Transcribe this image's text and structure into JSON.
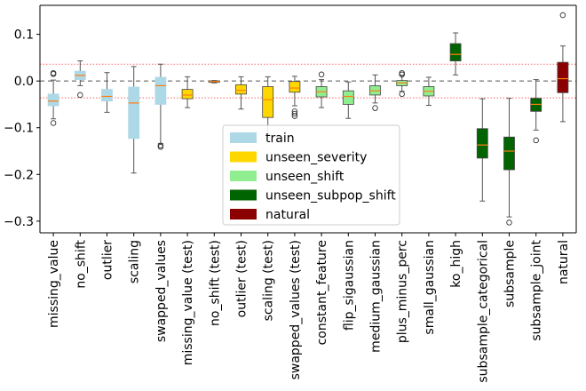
{
  "chart_data": {
    "type": "box",
    "categories": [
      "missing_value",
      "no_shift",
      "outlier",
      "scaling",
      "swapped_values",
      "missing_value (test)",
      "no_shift (test)",
      "outlier (test)",
      "scaling (test)",
      "swapped_values (test)",
      "constant_feature",
      "flip_sigaussian",
      "medium_gaussian",
      "plus_minus_perc",
      "small_gaussian",
      "ko_high",
      "subsample_categorical",
      "subsample",
      "subsample_joint",
      "natural"
    ],
    "groups": [
      "train",
      "train",
      "train",
      "train",
      "train",
      "unseen_severity",
      "unseen_severity",
      "unseen_severity",
      "unseen_severity",
      "unseen_severity",
      "unseen_shift",
      "unseen_shift",
      "unseen_shift",
      "unseen_shift",
      "unseen_shift",
      "unseen_subpop_shift",
      "unseen_subpop_shift",
      "unseen_subpop_shift",
      "unseen_subpop_shift",
      "natural"
    ],
    "boxes": [
      {
        "whislo": -0.081,
        "q1": -0.053,
        "med": -0.043,
        "q3": -0.028,
        "whishi": 0.002,
        "fliers": [
          -0.09,
          0.015,
          0.017
        ]
      },
      {
        "whislo": -0.01,
        "q1": 0.003,
        "med": 0.012,
        "q3": 0.021,
        "whishi": 0.043,
        "fliers": [
          -0.03
        ]
      },
      {
        "whislo": -0.067,
        "q1": -0.043,
        "med": -0.033,
        "q3": -0.018,
        "whishi": 0.018,
        "fliers": []
      },
      {
        "whislo": -0.197,
        "q1": -0.123,
        "med": -0.047,
        "q3": -0.013,
        "whishi": 0.031,
        "fliers": []
      },
      {
        "whislo": -0.134,
        "q1": -0.05,
        "med": -0.01,
        "q3": 0.008,
        "whishi": 0.036,
        "fliers": [
          -0.138,
          -0.141
        ]
      },
      {
        "whislo": -0.057,
        "q1": -0.038,
        "med": -0.03,
        "q3": -0.018,
        "whishi": 0.009,
        "fliers": []
      },
      {
        "whislo": -0.004,
        "q1": -0.002,
        "med": -0.001,
        "q3": 0.0,
        "whishi": 0.001,
        "fliers": []
      },
      {
        "whislo": -0.06,
        "q1": -0.028,
        "med": -0.02,
        "q3": -0.008,
        "whishi": 0.009,
        "fliers": []
      },
      {
        "whislo": -0.115,
        "q1": -0.078,
        "med": -0.04,
        "q3": -0.012,
        "whishi": 0.009,
        "fliers": []
      },
      {
        "whislo": -0.053,
        "q1": -0.024,
        "med": -0.015,
        "q3": -0.001,
        "whishi": 0.01,
        "fliers": [
          -0.065,
          -0.07,
          -0.075
        ]
      },
      {
        "whislo": -0.057,
        "q1": -0.034,
        "med": -0.023,
        "q3": -0.012,
        "whishi": 0.003,
        "fliers": [
          0.014
        ]
      },
      {
        "whislo": -0.08,
        "q1": -0.05,
        "med": -0.033,
        "q3": -0.021,
        "whishi": -0.002,
        "fliers": []
      },
      {
        "whislo": -0.047,
        "q1": -0.03,
        "med": -0.021,
        "q3": -0.01,
        "whishi": 0.013,
        "fliers": [
          -0.058
        ]
      },
      {
        "whislo": -0.022,
        "q1": -0.01,
        "med": -0.004,
        "q3": 0.001,
        "whishi": 0.012,
        "fliers": [
          -0.028,
          0.014,
          0.017
        ]
      },
      {
        "whislo": -0.052,
        "q1": -0.032,
        "med": -0.022,
        "q3": -0.012,
        "whishi": 0.008,
        "fliers": []
      },
      {
        "whislo": 0.013,
        "q1": 0.043,
        "med": 0.057,
        "q3": 0.08,
        "whishi": 0.103,
        "fliers": []
      },
      {
        "whislo": -0.257,
        "q1": -0.165,
        "med": -0.137,
        "q3": -0.102,
        "whishi": -0.038,
        "fliers": []
      },
      {
        "whislo": -0.291,
        "q1": -0.19,
        "med": -0.15,
        "q3": -0.12,
        "whishi": -0.037,
        "fliers": [
          -0.303
        ]
      },
      {
        "whislo": -0.105,
        "q1": -0.065,
        "med": -0.05,
        "q3": -0.037,
        "whishi": 0.003,
        "fliers": [
          -0.127
        ]
      },
      {
        "whislo": -0.087,
        "q1": -0.025,
        "med": 0.005,
        "q3": 0.04,
        "whishi": 0.075,
        "fliers": [
          0.141
        ]
      }
    ],
    "ylim": [
      -0.325,
      0.162
    ],
    "yticks": [
      {
        "value": 0.1,
        "label": "0.1"
      },
      {
        "value": 0.0,
        "label": "0.0"
      },
      {
        "value": -0.1,
        "label": "−0.1"
      },
      {
        "value": -0.2,
        "label": "−0.2"
      },
      {
        "value": -0.3,
        "label": "−0.3"
      }
    ],
    "reference_lines": [
      {
        "y": 0.0,
        "style": "dashed",
        "color": "#555555"
      },
      {
        "y": 0.036,
        "style": "dotted",
        "color": "#ff6666"
      },
      {
        "y": -0.036,
        "style": "dotted",
        "color": "#ff6666"
      }
    ],
    "legend": {
      "placement": "center",
      "entries": [
        {
          "label": "train",
          "color": "#add8e6"
        },
        {
          "label": "unseen_severity",
          "color": "#ffd700"
        },
        {
          "label": "unseen_shift",
          "color": "#90ee90"
        },
        {
          "label": "unseen_subpop_shift",
          "color": "#006400"
        },
        {
          "label": "natural",
          "color": "#8b0000"
        }
      ]
    },
    "median_color": "#ff7f0e",
    "grid": false
  }
}
